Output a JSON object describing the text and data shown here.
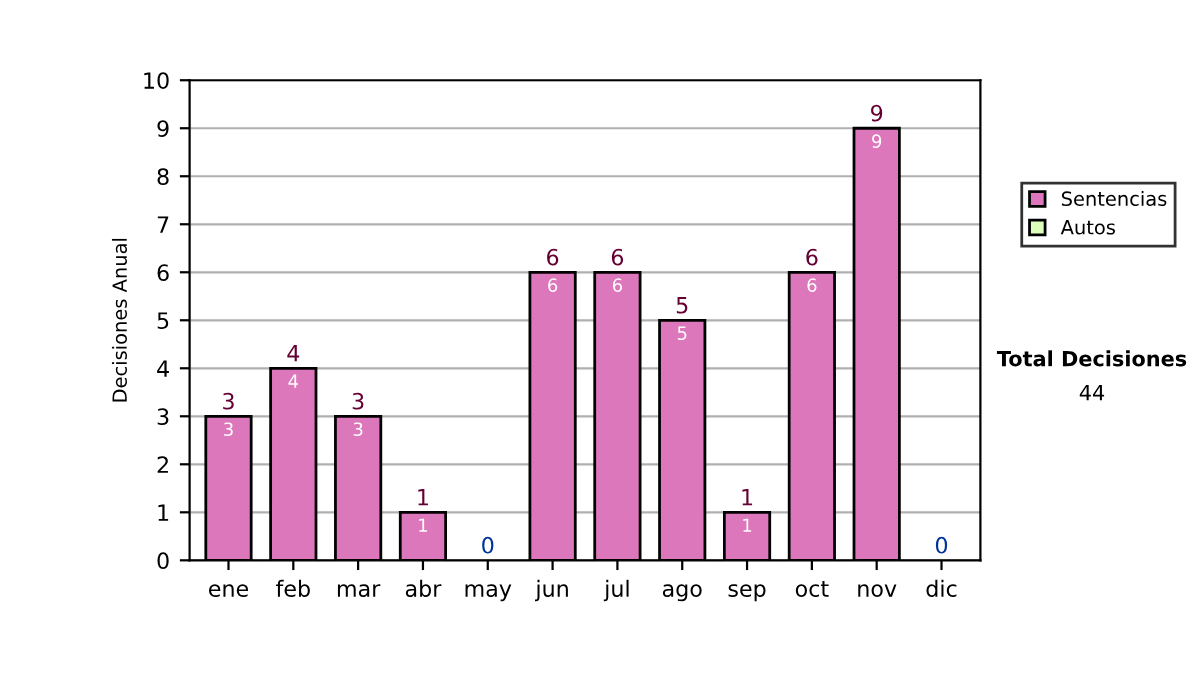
{
  "chart_data": {
    "type": "bar",
    "stacked": true,
    "ylabel": "Decisiones Anual",
    "categories": [
      "ene",
      "feb",
      "mar",
      "abr",
      "may",
      "jun",
      "jul",
      "ago",
      "sep",
      "oct",
      "nov",
      "dic"
    ],
    "series": [
      {
        "name": "Sentencias",
        "color": "#dd77bb",
        "values": [
          3,
          4,
          3,
          1,
          0,
          6,
          6,
          5,
          1,
          6,
          9,
          0
        ],
        "value_labels": [
          "3",
          "4",
          "3",
          "1",
          null,
          "6",
          "6",
          "5",
          "1",
          "6",
          "9",
          null
        ]
      },
      {
        "name": "Autos",
        "color": "#ddffbb",
        "values": [
          0,
          0,
          0,
          0,
          0,
          0,
          0,
          0,
          0,
          0,
          0,
          0
        ]
      }
    ],
    "totals": [
      "3",
      "4",
      "3",
      "1",
      "0",
      "6",
      "6",
      "5",
      "1",
      "6",
      "9",
      "0"
    ],
    "ylim": [
      0,
      10
    ],
    "yticks": [
      0,
      1,
      2,
      3,
      4,
      5,
      6,
      7,
      8,
      9,
      10
    ],
    "grid": "y",
    "legend": "right",
    "annotations": [
      "Total Decisiones",
      "44"
    ]
  }
}
